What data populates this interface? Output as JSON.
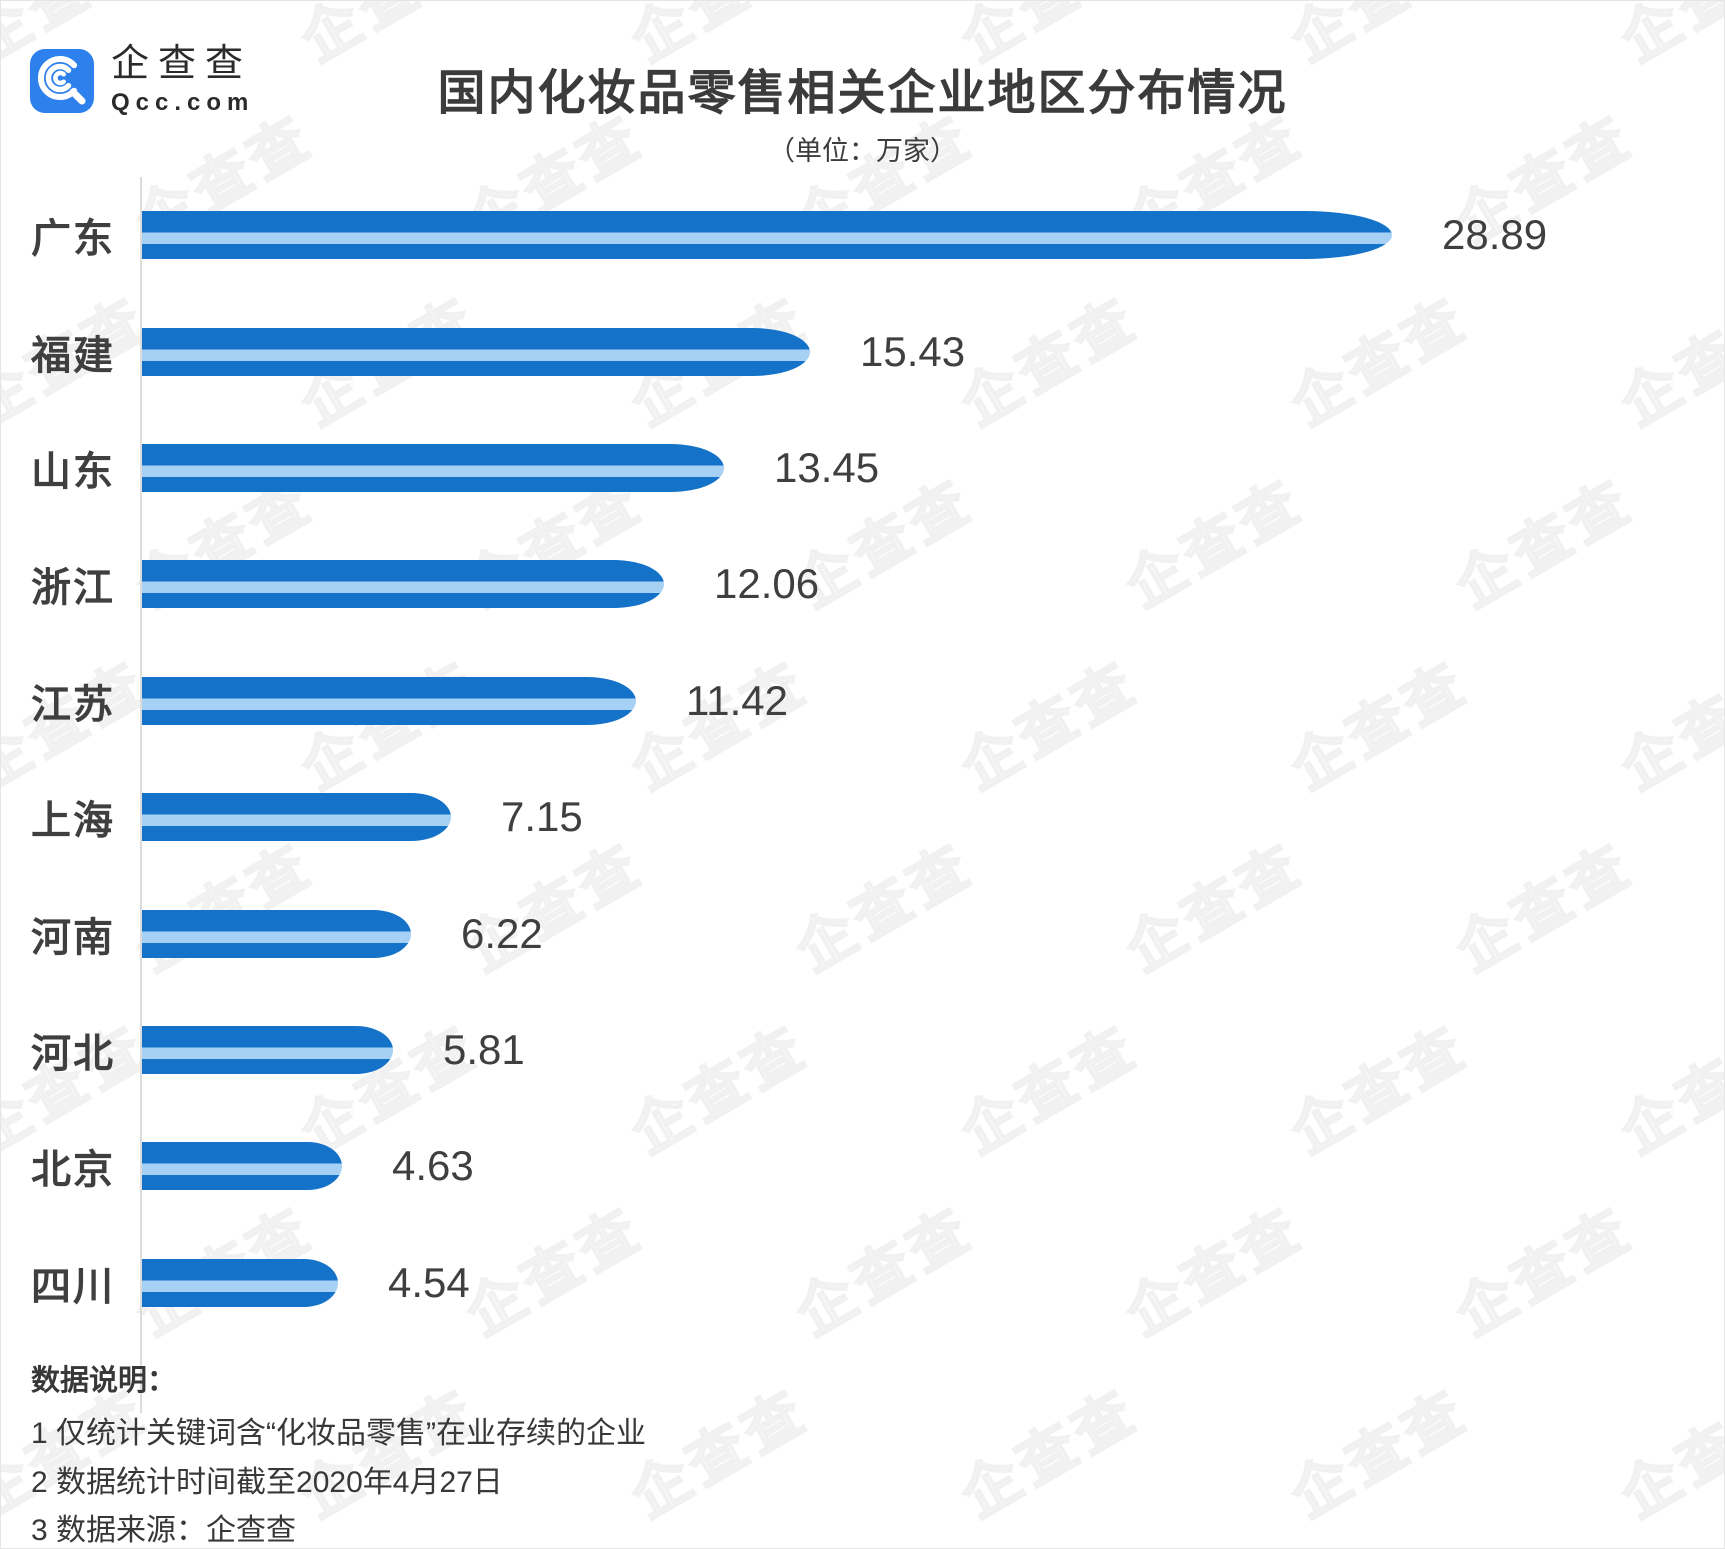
{
  "logo": {
    "brand": "企查查",
    "domain": "Qcc.com"
  },
  "header": {
    "title": "国内化妆品零售相关企业地区分布情况",
    "subtitle": "（单位：万家）"
  },
  "chart_data": {
    "type": "bar",
    "orientation": "horizontal",
    "title": "国内化妆品零售相关企业地区分布情况",
    "unit": "万家",
    "categories": [
      "广东",
      "福建",
      "山东",
      "浙江",
      "江苏",
      "上海",
      "河南",
      "河北",
      "北京",
      "四川"
    ],
    "values": [
      28.89,
      15.43,
      13.45,
      12.06,
      11.42,
      7.15,
      6.22,
      5.81,
      4.63,
      4.54
    ],
    "xlim": [
      0,
      30
    ],
    "grid": false,
    "value_label_position": "right-of-bar",
    "bar_style": "striped-capsule"
  },
  "footer": {
    "heading": "数据说明：",
    "notes": [
      "1 仅统计关键词含“化妆品零售”在业存续的企业",
      "2 数据统计时间截至2020年4月27日",
      "3 数据来源：企查查"
    ]
  },
  "watermark": {
    "text": "企查查"
  },
  "colors": {
    "bar_dark": "#1472C8",
    "bar_light": "#A6D0F4",
    "logo_blue": "#2E80EC",
    "text_dark": "#3F3F3F",
    "axis_gray": "#DCDCDC",
    "watermark_gray": "#F1F1F1"
  }
}
